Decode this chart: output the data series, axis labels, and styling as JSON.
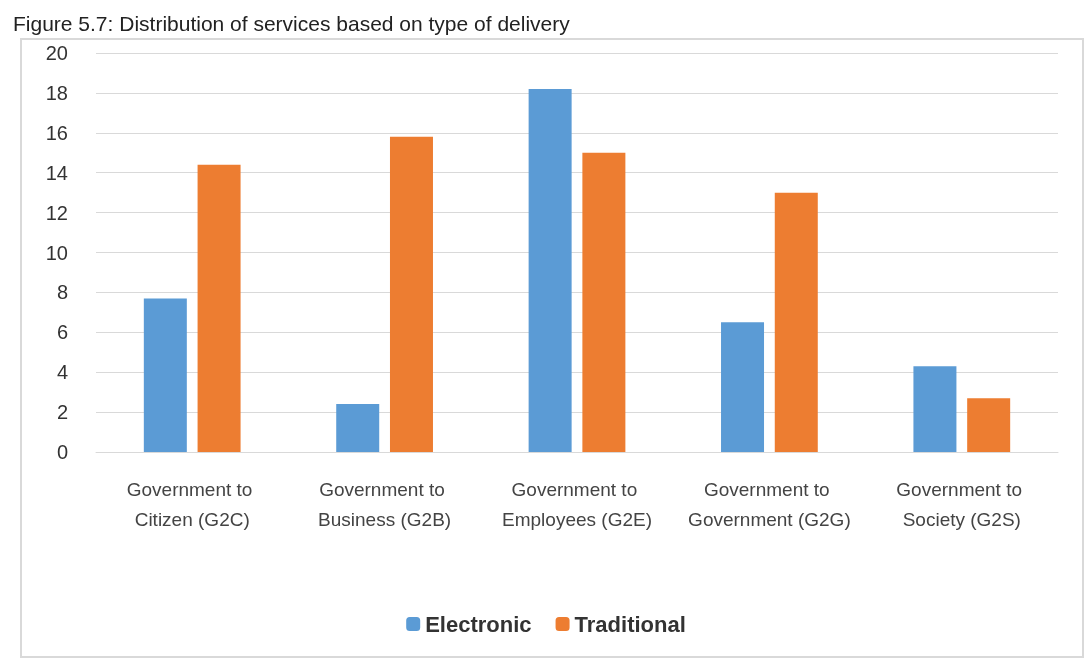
{
  "chart_data": {
    "type": "bar",
    "title": "Figure 5.7: Distribution of services based on type of delivery",
    "categories": [
      "Government to Citizen (G2C)",
      "Government to Business (G2B)",
      "Government to Employees (G2E)",
      "Government to Government (G2G)",
      "Government to Society (G2S)"
    ],
    "series": [
      {
        "name": "Electronic",
        "color": "#5b9bd5",
        "values": [
          7.7,
          2.4,
          18.2,
          6.5,
          4.3
        ]
      },
      {
        "name": "Traditional",
        "color": "#ed7d31",
        "values": [
          14.4,
          15.8,
          15.0,
          13.0,
          2.7
        ]
      }
    ],
    "ylim": [
      0,
      20
    ],
    "yticks": [
      0,
      2,
      4,
      6,
      8,
      10,
      12,
      14,
      16,
      18,
      20
    ],
    "grid": "y",
    "legend": "bottom"
  }
}
